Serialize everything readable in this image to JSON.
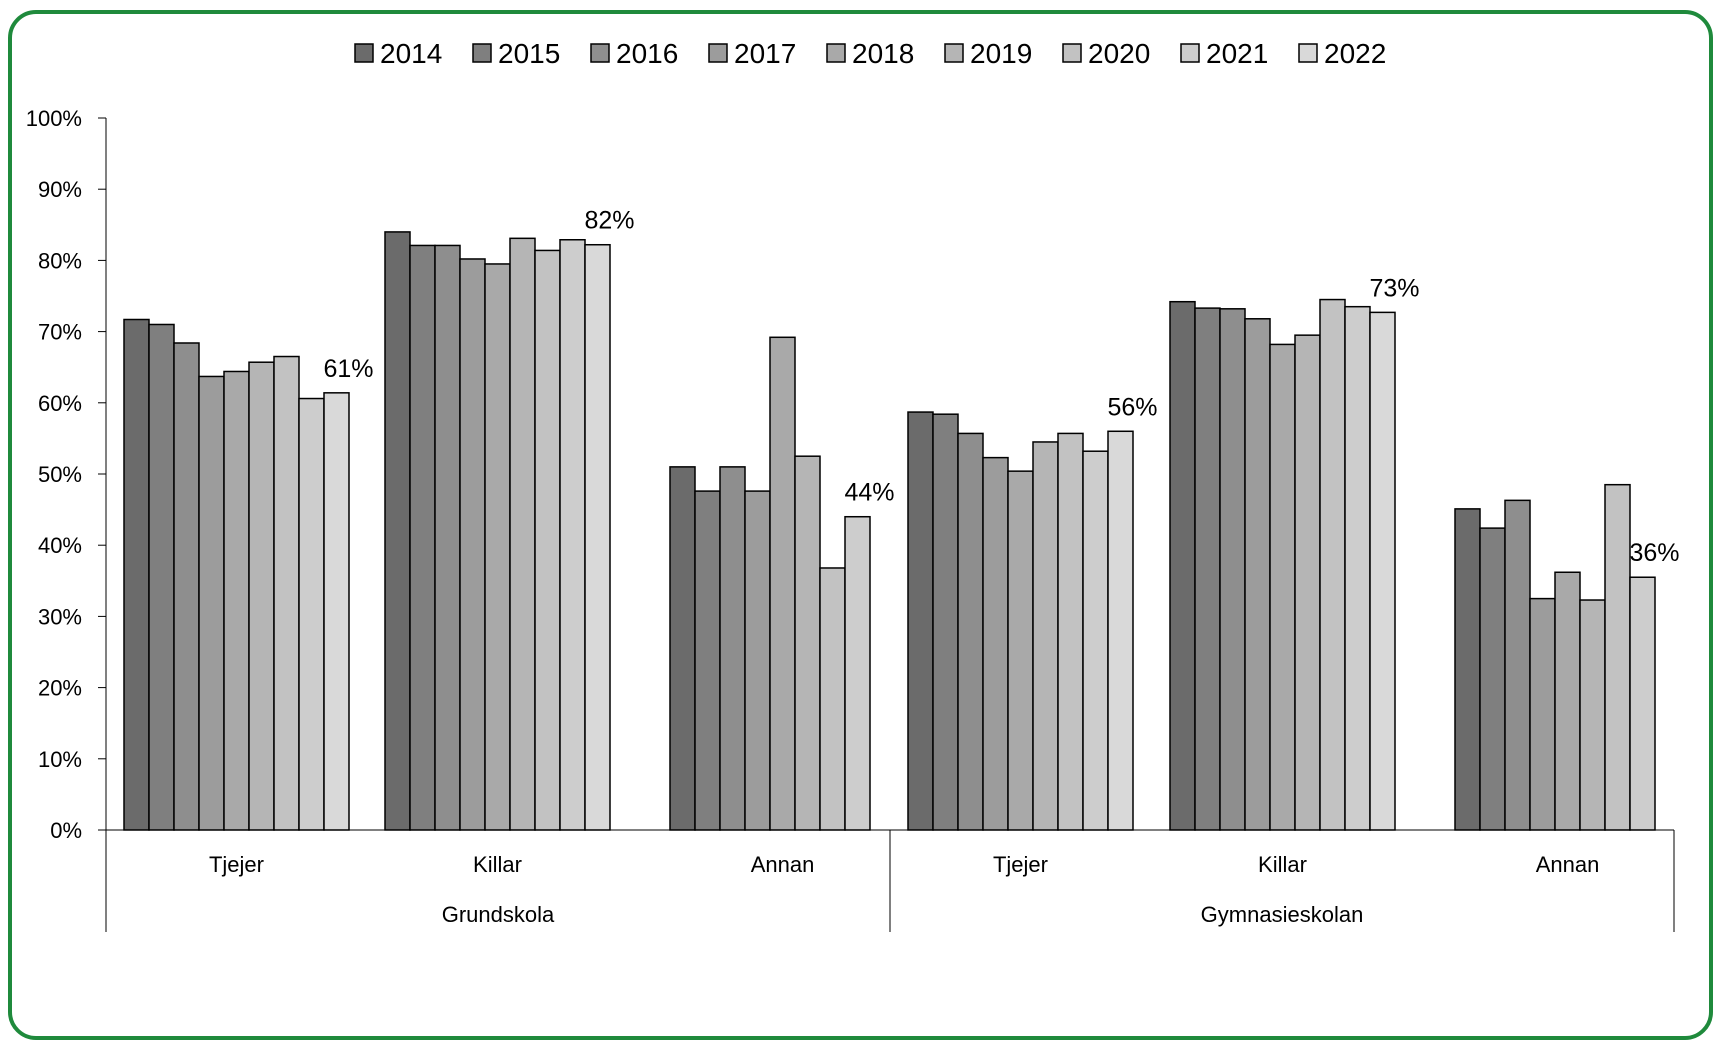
{
  "chart_data": {
    "type": "bar",
    "title": "",
    "xlabel": "",
    "ylabel": "",
    "ylim": [
      0,
      100
    ],
    "y_ticks": [
      "0%",
      "10%",
      "20%",
      "30%",
      "40%",
      "50%",
      "60%",
      "70%",
      "80%",
      "90%",
      "100%"
    ],
    "legend_position": "top",
    "grid": false,
    "groups": [
      {
        "label": "Grundskola",
        "categories": [
          "Tjejer",
          "Killar",
          "Annan"
        ]
      },
      {
        "label": "Gymnasieskolan",
        "categories": [
          "Tjejer",
          "Killar",
          "Annan"
        ]
      }
    ],
    "series": [
      {
        "name": "2014",
        "color": "#6b6b6b",
        "values": [
          71.7,
          84.0,
          51.0,
          58.7,
          74.2,
          45.1
        ]
      },
      {
        "name": "2015",
        "color": "#7f7f7f",
        "values": [
          71.0,
          82.1,
          47.6,
          58.4,
          73.3,
          42.4
        ]
      },
      {
        "name": "2016",
        "color": "#8e8e8e",
        "values": [
          68.4,
          82.1,
          51.0,
          55.7,
          73.2,
          46.3
        ]
      },
      {
        "name": "2017",
        "color": "#9c9c9c",
        "values": [
          63.7,
          80.2,
          47.6,
          52.3,
          71.8,
          32.5
        ]
      },
      {
        "name": "2018",
        "color": "#a9a9a9",
        "values": [
          64.4,
          79.5,
          69.2,
          50.4,
          68.2,
          36.2
        ]
      },
      {
        "name": "2019",
        "color": "#b5b5b5",
        "values": [
          65.7,
          83.1,
          52.5,
          54.5,
          69.5,
          32.3
        ]
      },
      {
        "name": "2020",
        "color": "#c2c2c2",
        "values": [
          66.5,
          81.4,
          36.8,
          55.7,
          74.5,
          48.5
        ]
      },
      {
        "name": "2021",
        "color": "#cdcdcd",
        "values": [
          60.6,
          82.9,
          44.0,
          53.2,
          73.5,
          35.5
        ]
      },
      {
        "name": "2022",
        "color": "#d9d9d9",
        "values": [
          61.4,
          82.2,
          null,
          56.0,
          72.7,
          null
        ]
      }
    ],
    "annotations": [
      {
        "text": "61%",
        "category_index": 0
      },
      {
        "text": "82%",
        "category_index": 1
      },
      {
        "text": "44%",
        "category_index": 2
      },
      {
        "text": "56%",
        "category_index": 3
      },
      {
        "text": "73%",
        "category_index": 4
      },
      {
        "text": "36%",
        "category_index": 5
      }
    ]
  }
}
